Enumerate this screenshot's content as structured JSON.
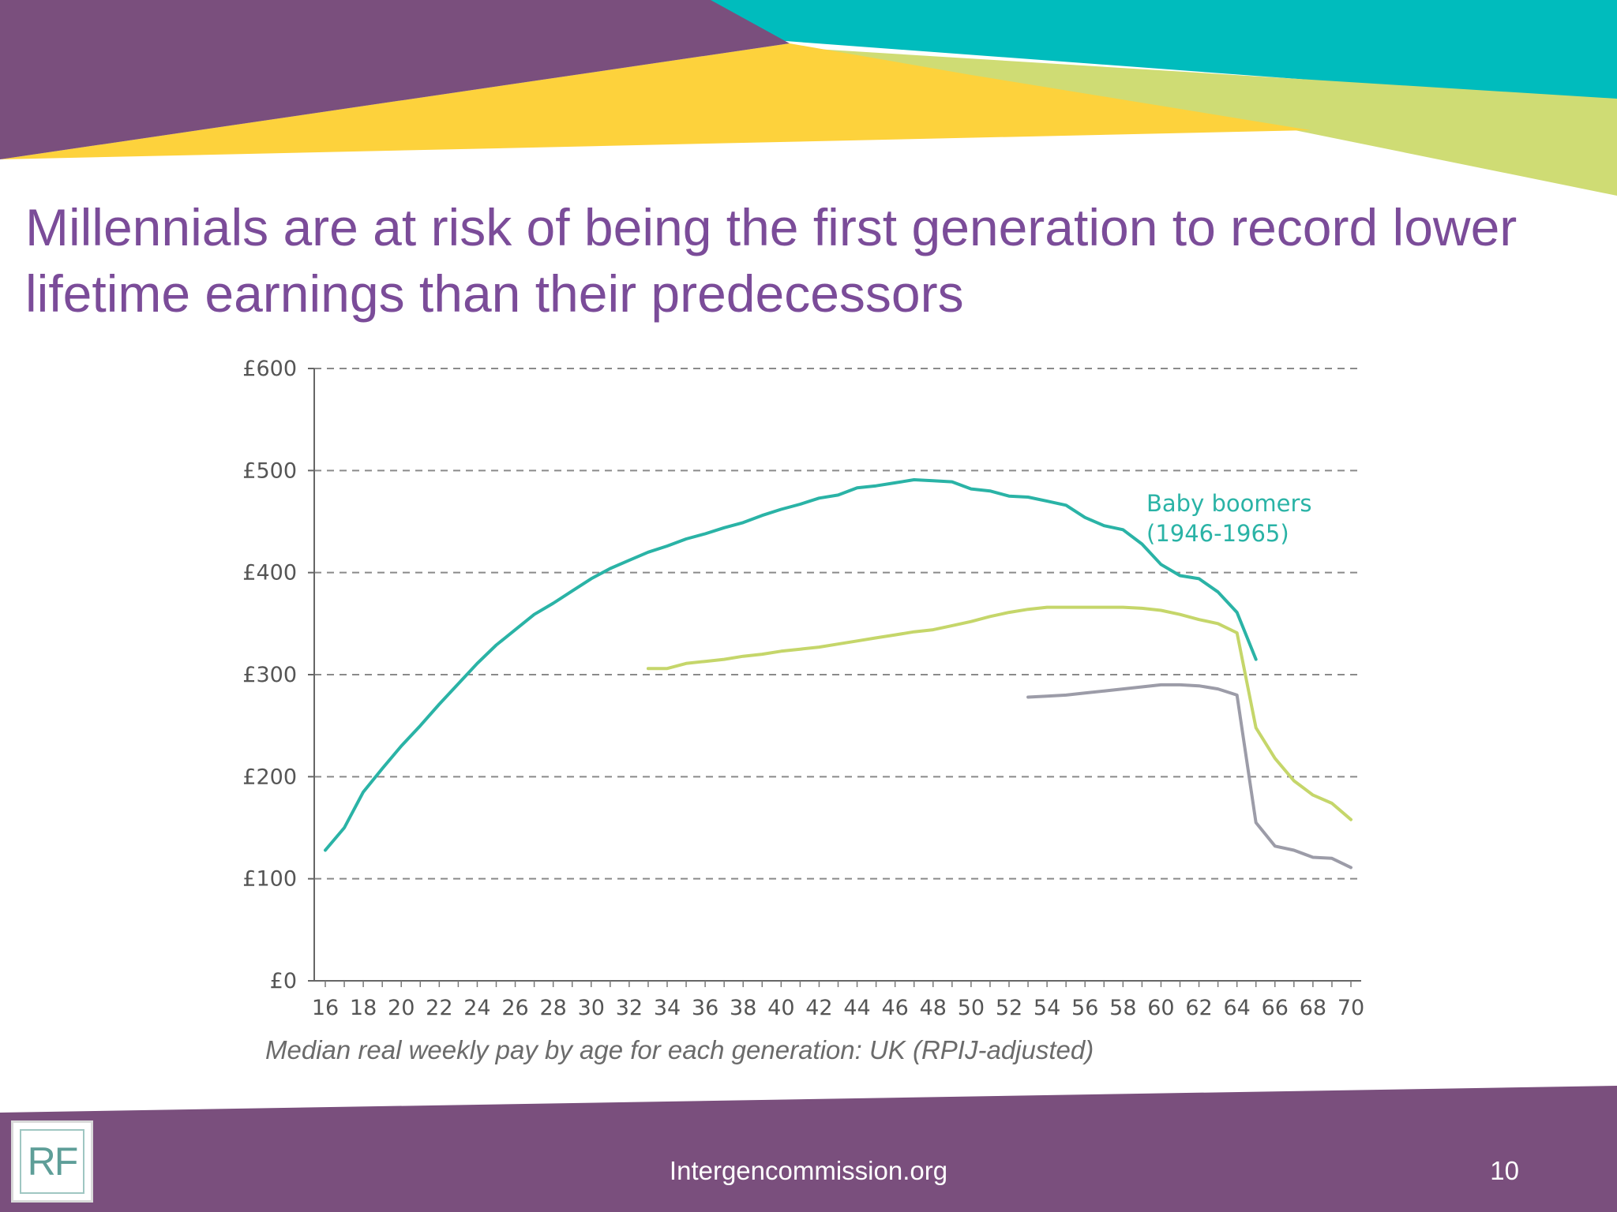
{
  "slide": {
    "title": "Millennials are at risk of being the first generation to record lower lifetime earnings than their predecessors",
    "footer_url": "Intergencommission.org",
    "page_number": "10",
    "logo_text": "RF"
  },
  "colors": {
    "purple": "#7a4f7d",
    "teal": "#00bcbd",
    "yellow": "#fdd23c",
    "lime": "#cfdc74",
    "title": "#7b4c99"
  },
  "chart_data": {
    "type": "line",
    "caption": "Median real weekly pay by age for each generation: UK (RPIJ-adjusted)",
    "xlim": [
      15,
      71
    ],
    "ylim": [
      0,
      600
    ],
    "x_ticks": [
      16,
      18,
      20,
      22,
      24,
      26,
      28,
      30,
      32,
      34,
      36,
      38,
      40,
      42,
      44,
      46,
      48,
      50,
      52,
      54,
      56,
      58,
      60,
      62,
      64,
      66,
      68,
      70
    ],
    "x_tick_labels": [
      "16",
      "18",
      "20",
      "22",
      "24",
      "26",
      "28",
      "30",
      "32",
      "34",
      "36",
      "38",
      "40",
      "42",
      "44",
      "46",
      "48",
      "50",
      "52",
      "54",
      "56",
      "58",
      "60",
      "62",
      "64",
      "66",
      "68",
      "70"
    ],
    "y_ticks": [
      0,
      100,
      200,
      300,
      400,
      500,
      600
    ],
    "y_tick_labels": [
      "£0",
      "£100",
      "£200",
      "£300",
      "£400",
      "£500",
      "£600"
    ],
    "grid": "horizontal dashed",
    "series": [
      {
        "name": "Baby boomers (1946-1965)",
        "label_lines": [
          "Baby boomers",
          "(1946-1965)"
        ],
        "color": "#2ab3a6",
        "x": [
          16,
          17,
          18,
          19,
          20,
          21,
          22,
          23,
          24,
          25,
          26,
          27,
          28,
          29,
          30,
          31,
          32,
          33,
          34,
          35,
          36,
          37,
          38,
          39,
          40,
          41,
          42,
          43,
          44,
          45,
          46,
          47,
          48,
          49,
          50,
          51,
          52,
          53,
          54,
          55,
          56,
          57,
          58,
          59,
          60,
          61,
          62,
          63,
          64,
          65
        ],
        "y": [
          128,
          150,
          185,
          208,
          230,
          250,
          271,
          291,
          311,
          329,
          344,
          359,
          370,
          382,
          394,
          404,
          412,
          420,
          426,
          433,
          438,
          444,
          449,
          456,
          462,
          467,
          473,
          476,
          483,
          485,
          488,
          491,
          490,
          489,
          482,
          480,
          475,
          474,
          470,
          466,
          454,
          446,
          442,
          428,
          408,
          397,
          394,
          381,
          361,
          315
        ]
      },
      {
        "name": "",
        "color": "#c5d66a",
        "x": [
          33,
          34,
          35,
          36,
          37,
          38,
          39,
          40,
          41,
          42,
          43,
          44,
          45,
          46,
          47,
          48,
          49,
          50,
          51,
          52,
          53,
          54,
          55,
          56,
          57,
          58,
          59,
          60,
          61,
          62,
          63,
          64,
          65,
          66,
          67,
          68,
          69,
          70
        ],
        "y": [
          306,
          306,
          311,
          313,
          315,
          318,
          320,
          323,
          325,
          327,
          330,
          333,
          336,
          339,
          342,
          344,
          348,
          352,
          357,
          361,
          364,
          366,
          366,
          366,
          366,
          366,
          365,
          363,
          359,
          354,
          350,
          341,
          248,
          218,
          196,
          182,
          174,
          158
        ]
      },
      {
        "name": "",
        "color": "#9c9ca8",
        "x": [
          53,
          54,
          55,
          56,
          57,
          58,
          59,
          60,
          61,
          62,
          63,
          64,
          65,
          66,
          67,
          68,
          69,
          70
        ],
        "y": [
          278,
          279,
          280,
          282,
          284,
          286,
          288,
          290,
          290,
          289,
          286,
          280,
          155,
          132,
          128,
          121,
          120,
          111
        ]
      }
    ]
  }
}
